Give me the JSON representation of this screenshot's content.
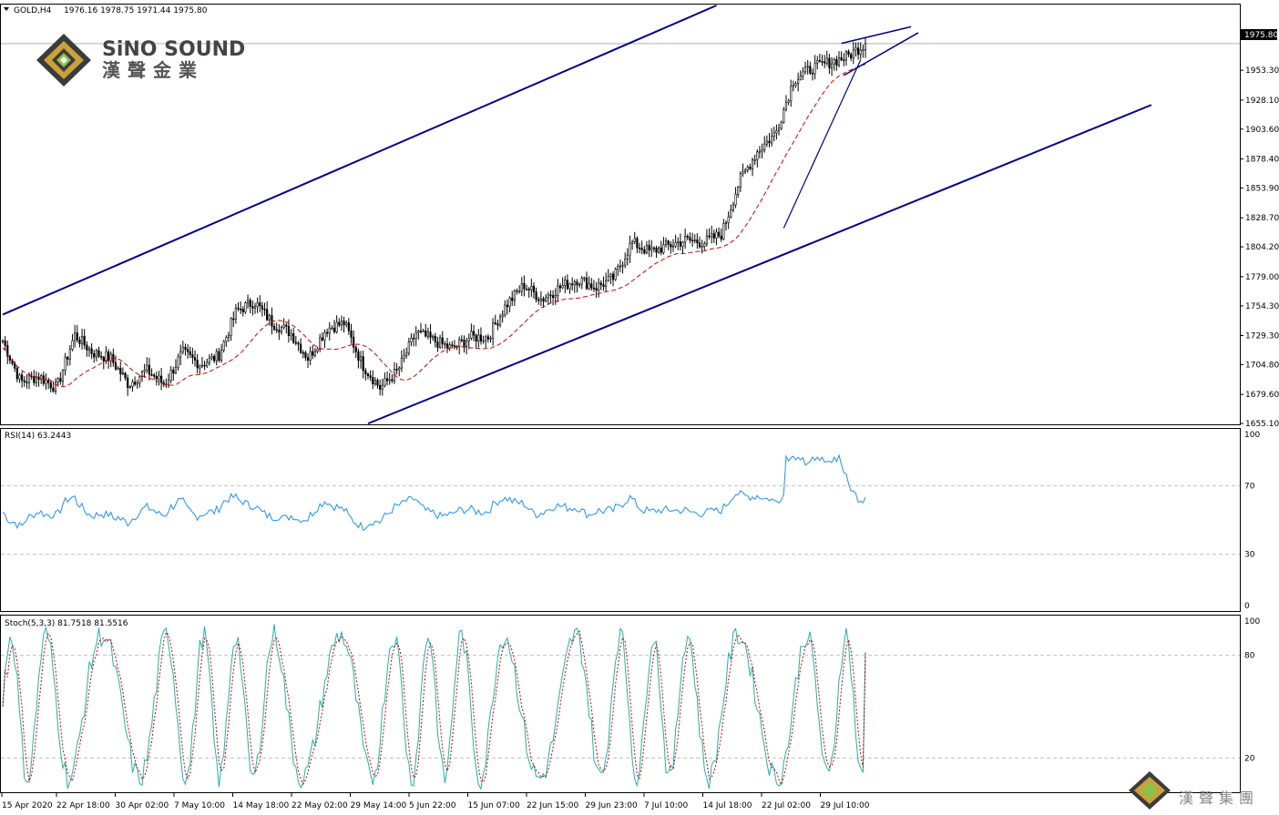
{
  "header": {
    "symbol": "GOLD,H4",
    "ohlc": "1976.16 1978.75 1971.44 1975.80"
  },
  "logo": {
    "name_en": "SiNO SOUND",
    "name_zh": "漢聲金業"
  },
  "footer_logo": {
    "name_zh": "漢聲集團"
  },
  "colors": {
    "candle": "#000000",
    "ma": "#cc0000",
    "trend": "#00008b",
    "rsi": "#1e90ff",
    "stoch_k": "#20b2aa",
    "stoch_d": "#cc0000",
    "grid": "#c0c0c0"
  },
  "chart_data": [
    {
      "type": "candlestick",
      "title": "GOLD,H4",
      "ylim": [
        1655.1,
        2008
      ],
      "current_price": 1975.8,
      "current_price_label": "1975.80",
      "y_ticks": [
        "1953.30",
        "1928.10",
        "1903.60",
        "1878.40",
        "1853.90",
        "1828.70",
        "1804.20",
        "1779.00",
        "1754.30",
        "1729.30",
        "1704.80",
        "1679.60",
        "1655.10"
      ],
      "x_ticks": [
        "15 Apr 2020",
        "22 Apr 18:00",
        "30 Apr 02:00",
        "7 May 10:00",
        "14 May 18:00",
        "22 May 02:00",
        "29 May 14:00",
        "5 Jun 22:00",
        "15 Jun 07:00",
        "22 Jun 15:00",
        "29 Jun 23:00",
        "7 Jul 10:00",
        "14 Jul 18:00",
        "22 Jul 02:00",
        "29 Jul 10:00"
      ],
      "close_anchors": [
        [
          "15 Apr 2020",
          1725
        ],
        [
          "17 Apr",
          1690
        ],
        [
          "20 Apr",
          1695
        ],
        [
          "21 Apr",
          1685
        ],
        [
          "23 Apr",
          1730
        ],
        [
          "27 Apr",
          1715
        ],
        [
          "29 Apr",
          1710
        ],
        [
          "30 Apr",
          1688
        ],
        [
          "4 May",
          1700
        ],
        [
          "7 May",
          1688
        ],
        [
          "8 May",
          1715
        ],
        [
          "11 May",
          1705
        ],
        [
          "13 May",
          1712
        ],
        [
          "15 May",
          1750
        ],
        [
          "18 May",
          1758
        ],
        [
          "20 May",
          1740
        ],
        [
          "22 May",
          1732
        ],
        [
          "26 May",
          1710
        ],
        [
          "29 May",
          1735
        ],
        [
          "2 Jun",
          1740
        ],
        [
          "3 Jun",
          1705
        ],
        [
          "5 Jun",
          1685
        ],
        [
          "8 Jun",
          1700
        ],
        [
          "10 Jun",
          1732
        ],
        [
          "12 Jun",
          1725
        ],
        [
          "15 Jun",
          1718
        ],
        [
          "17 Jun",
          1728
        ],
        [
          "19 Jun",
          1728
        ],
        [
          "22 Jun",
          1755
        ],
        [
          "24 Jun",
          1772
        ],
        [
          "25 Jun",
          1760
        ],
        [
          "29 Jun",
          1770
        ],
        [
          "1 Jul",
          1777
        ],
        [
          "3 Jul",
          1770
        ],
        [
          "6 Jul",
          1778
        ],
        [
          "8 Jul",
          1808
        ],
        [
          "10 Jul",
          1800
        ],
        [
          "13 Jul",
          1805
        ],
        [
          "15 Jul",
          1810
        ],
        [
          "17 Jul",
          1808
        ],
        [
          "20 Jul",
          1815
        ],
        [
          "22 Jul",
          1860
        ],
        [
          "23 Jul",
          1885
        ],
        [
          "24 Jul",
          1900
        ],
        [
          "27 Jul",
          1945
        ],
        [
          "28 Jul",
          1955
        ],
        [
          "29 Jul",
          1960
        ],
        [
          "30 Jul",
          1965
        ],
        [
          "31 Jul",
          1975.8
        ]
      ],
      "moving_average": "dashed red line following price",
      "trendlines": "ascending channel lines plus converging wedge near the top"
    },
    {
      "type": "line",
      "title": "RSI(14) 63.2443",
      "ylim": [
        0,
        100
      ],
      "y_ticks": [
        100,
        70,
        30,
        0
      ],
      "levels": [
        70,
        30
      ],
      "last_value": 63.2443
    },
    {
      "type": "line",
      "title": "Stoch(5,3,3) 81.7518 81.5516",
      "ylim": [
        0,
        100
      ],
      "y_ticks": [
        100,
        80,
        20
      ],
      "levels": [
        80,
        20
      ],
      "last_k": 81.7518,
      "last_d": 81.5516
    }
  ]
}
